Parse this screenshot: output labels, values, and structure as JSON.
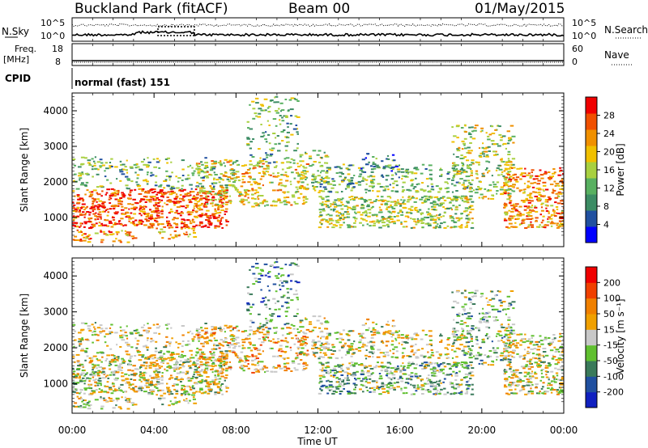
{
  "header": {
    "station": "Buckland Park (fitACF)",
    "beam": "Beam 00",
    "date": "01/May/2015"
  },
  "top_panels": {
    "nsky_label": "N.Sky",
    "nsearch_label": "N.Search",
    "noise_ticks": [
      "10^5",
      "10^0"
    ],
    "freq_label_1": "Freq.",
    "freq_label_2": "[MHz]",
    "freq_ticks": [
      "18",
      "8"
    ],
    "nave_label": "Nave",
    "nave_ticks": [
      "60",
      "0"
    ],
    "cpid_label": "CPID",
    "cpid_value": "normal (fast) 151"
  },
  "colors": {
    "power_scale": [
      "#0000ff",
      "#2050a0",
      "#3c8c64",
      "#58b060",
      "#a8d040",
      "#f0c000",
      "#f09000",
      "#f05000",
      "#f00000"
    ],
    "velocity_scale": [
      "#1020c0",
      "#2050a0",
      "#3a7a5a",
      "#60c030",
      "#c8c8c8",
      "#f0a000",
      "#f08000",
      "#f04000",
      "#f00000"
    ]
  },
  "chart_data": [
    {
      "type": "heatmap",
      "name": "power",
      "ylabel": "Slant Range [km]",
      "ylim": [
        180,
        4500
      ],
      "yticks": [
        "4000",
        "3000",
        "2000",
        "1000"
      ],
      "xlim": [
        "00:00",
        "24:00"
      ],
      "colorbar": {
        "label": "Power [dB]",
        "ticks": [
          "28",
          "24",
          "20",
          "16",
          "12",
          "8",
          "4"
        ],
        "range": [
          0,
          32
        ]
      }
    },
    {
      "type": "heatmap",
      "name": "velocity",
      "ylabel": "Slant Range [km]",
      "ylim": [
        180,
        4500
      ],
      "yticks": [
        "4000",
        "3000",
        "2000",
        "1000"
      ],
      "xlabel": "Time UT",
      "xticks": [
        "00:00",
        "04:00",
        "08:00",
        "12:00",
        "16:00",
        "20:00",
        "00:00"
      ],
      "colorbar": {
        "label": "Velocity [m s⁻¹]",
        "ticks": [
          "200",
          "100",
          "50",
          "15",
          "-15",
          "-50",
          "-100",
          "-200"
        ],
        "range": [
          -250,
          250
        ]
      }
    }
  ]
}
